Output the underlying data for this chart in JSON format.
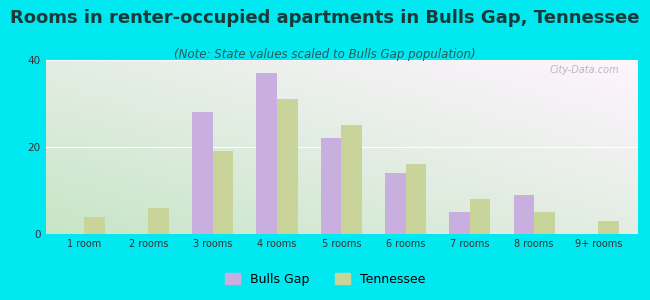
{
  "title": "Rooms in renter-occupied apartments in Bulls Gap, Tennessee",
  "subtitle": "(Note: State values scaled to Bulls Gap population)",
  "categories": [
    "1 room",
    "2 rooms",
    "3 rooms",
    "4 rooms",
    "5 rooms",
    "6 rooms",
    "7 rooms",
    "8 rooms",
    "9+ rooms"
  ],
  "bulls_gap": [
    0,
    0,
    28,
    37,
    22,
    14,
    5,
    9,
    0
  ],
  "tennessee": [
    4,
    6,
    19,
    31,
    25,
    16,
    8,
    5,
    3
  ],
  "bulls_gap_color": "#c9aee0",
  "tennessee_color": "#c8d49a",
  "background_outer": "#00e8f0",
  "ylim": [
    0,
    40
  ],
  "yticks": [
    0,
    20,
    40
  ],
  "bar_width": 0.32,
  "legend_bulls_gap": "Bulls Gap",
  "legend_tennessee": "Tennessee",
  "title_fontsize": 13,
  "subtitle_fontsize": 8.5,
  "watermark": "City-Data.com"
}
